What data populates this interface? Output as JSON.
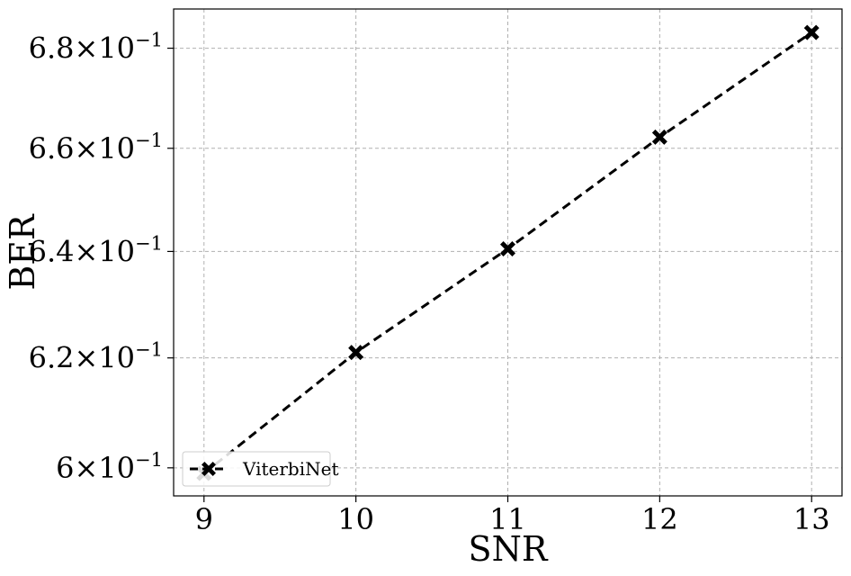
{
  "chart_data": {
    "type": "line",
    "title": "",
    "xlabel": "SNR",
    "ylabel": "BER",
    "xlim": [
      8.8,
      13.2
    ],
    "ylim": [
      0.595,
      0.688
    ],
    "y_scale": "log",
    "grid": true,
    "legend_position": "lower-left",
    "x_ticks": [
      {
        "value": 9,
        "label": "9"
      },
      {
        "value": 10,
        "label": "10"
      },
      {
        "value": 11,
        "label": "11"
      },
      {
        "value": 12,
        "label": "12"
      },
      {
        "value": 13,
        "label": "13"
      }
    ],
    "y_ticks": [
      {
        "value": 0.6,
        "mantissa": "6",
        "base": "10",
        "exponent": "−1"
      },
      {
        "value": 0.62,
        "mantissa": "6.2",
        "base": "10",
        "exponent": "−1"
      },
      {
        "value": 0.64,
        "mantissa": "6.4",
        "base": "10",
        "exponent": "−1"
      },
      {
        "value": 0.66,
        "mantissa": "6.6",
        "base": "10",
        "exponent": "−1"
      },
      {
        "value": 0.68,
        "mantissa": "6.8",
        "base": "10",
        "exponent": "−1"
      }
    ],
    "series": [
      {
        "name": "ViterbiNet",
        "color": "#000000",
        "line_style": "dashed",
        "marker": "x-filled",
        "x": [
          9,
          10,
          11,
          12,
          13
        ],
        "y": [
          0.599,
          0.621,
          0.6405,
          0.6622,
          0.6832
        ]
      }
    ]
  }
}
